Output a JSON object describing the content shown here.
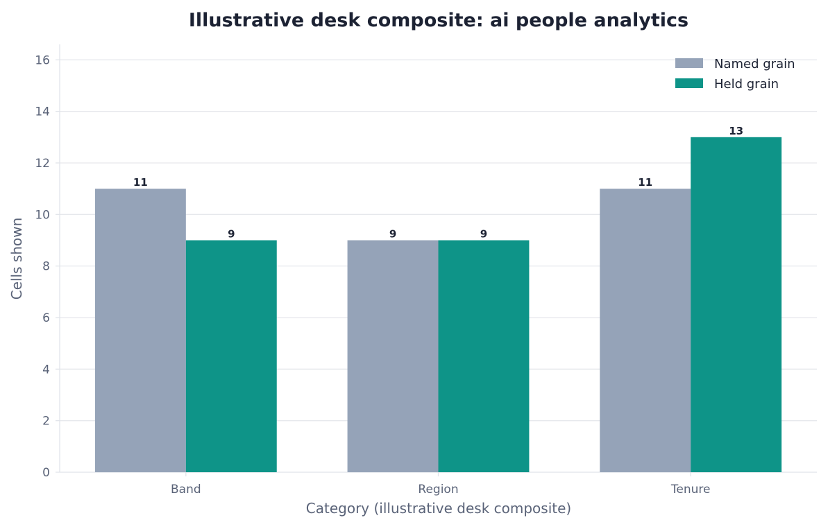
{
  "chart_data": {
    "type": "bar",
    "title": "Illustrative desk composite: ai people analytics",
    "xlabel": "Category (illustrative desk composite)",
    "ylabel": "Cells shown",
    "categories": [
      "Band",
      "Region",
      "Tenure"
    ],
    "series": [
      {
        "name": "Named grain",
        "values": [
          11,
          9,
          11
        ],
        "color": "#95a3b8"
      },
      {
        "name": "Held grain",
        "values": [
          9,
          9,
          13
        ],
        "color": "#0e9488"
      }
    ],
    "ylim": [
      0,
      16.6
    ],
    "yticks": [
      0,
      2,
      4,
      6,
      8,
      10,
      12,
      14,
      16
    ],
    "grid": "horizontal",
    "legend_position": "top-right"
  }
}
